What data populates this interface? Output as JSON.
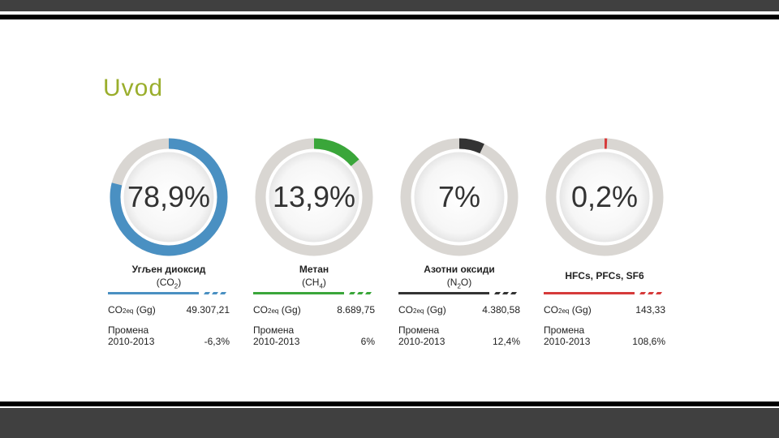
{
  "slide": {
    "title": "Uvod"
  },
  "cards": [
    {
      "percent_label": "78,9%",
      "name": "Угљен диоксид",
      "formula_main": "CO",
      "formula_sub": "2",
      "formula_open": "(",
      "formula_close": ")",
      "co2eq_label_main": "CO",
      "co2eq_label_sub": "2eq",
      "co2eq_label_unit": " (Gg)",
      "co2eq_value": "49.307,21",
      "change_label_1": "Промена",
      "change_label_2": "2010-2013",
      "change_value": "-6,3%",
      "color": "#4a90c2",
      "share": 0.789
    },
    {
      "percent_label": "13,9%",
      "name": "Метан",
      "formula_main": "CH",
      "formula_sub": "4",
      "formula_open": "(",
      "formula_close": ")",
      "co2eq_label_main": "CO",
      "co2eq_label_sub": "2eq",
      "co2eq_label_unit": " (Gg)",
      "co2eq_value": "8.689,75",
      "change_label_1": "Промена",
      "change_label_2": "2010-2013",
      "change_value": "6%",
      "color": "#3aa63a",
      "share": 0.139
    },
    {
      "percent_label": "7%",
      "name": "Азотни оксиди",
      "formula_main": "N",
      "formula_sub": "2",
      "formula_tail": "O",
      "formula_open": "(",
      "formula_close": ")",
      "co2eq_label_main": "CO",
      "co2eq_label_sub": "2eq",
      "co2eq_label_unit": " (Gg)",
      "co2eq_value": "4.380,58",
      "change_label_1": "Промена",
      "change_label_2": "2010-2013",
      "change_value": "12,4%",
      "color": "#333333",
      "share": 0.07
    },
    {
      "percent_label": "0,2%",
      "name": "HFCs, PFCs, SF6",
      "formula_main": "",
      "formula_sub": "",
      "formula_open": "",
      "formula_close": "",
      "co2eq_label_main": "CO",
      "co2eq_label_sub": "2eq",
      "co2eq_label_unit": " (Gg)",
      "co2eq_value": "143,33",
      "change_label_1": "Промена",
      "change_label_2": "2010-2013",
      "change_value": "108,6%",
      "color": "#d63a3a",
      "share": 0.002
    }
  ],
  "chart_data": [
    {
      "type": "pie",
      "categories": [
        "Угљен диоксид (CO2)"
      ],
      "values": [
        78.9
      ],
      "unit": "%"
    },
    {
      "type": "pie",
      "categories": [
        "Метан (CH4)"
      ],
      "values": [
        13.9
      ],
      "unit": "%"
    },
    {
      "type": "pie",
      "categories": [
        "Азотни оксиди (N2O)"
      ],
      "values": [
        7
      ],
      "unit": "%"
    },
    {
      "type": "pie",
      "categories": [
        "HFCs, PFCs, SF6"
      ],
      "values": [
        0.2
      ],
      "unit": "%"
    }
  ]
}
